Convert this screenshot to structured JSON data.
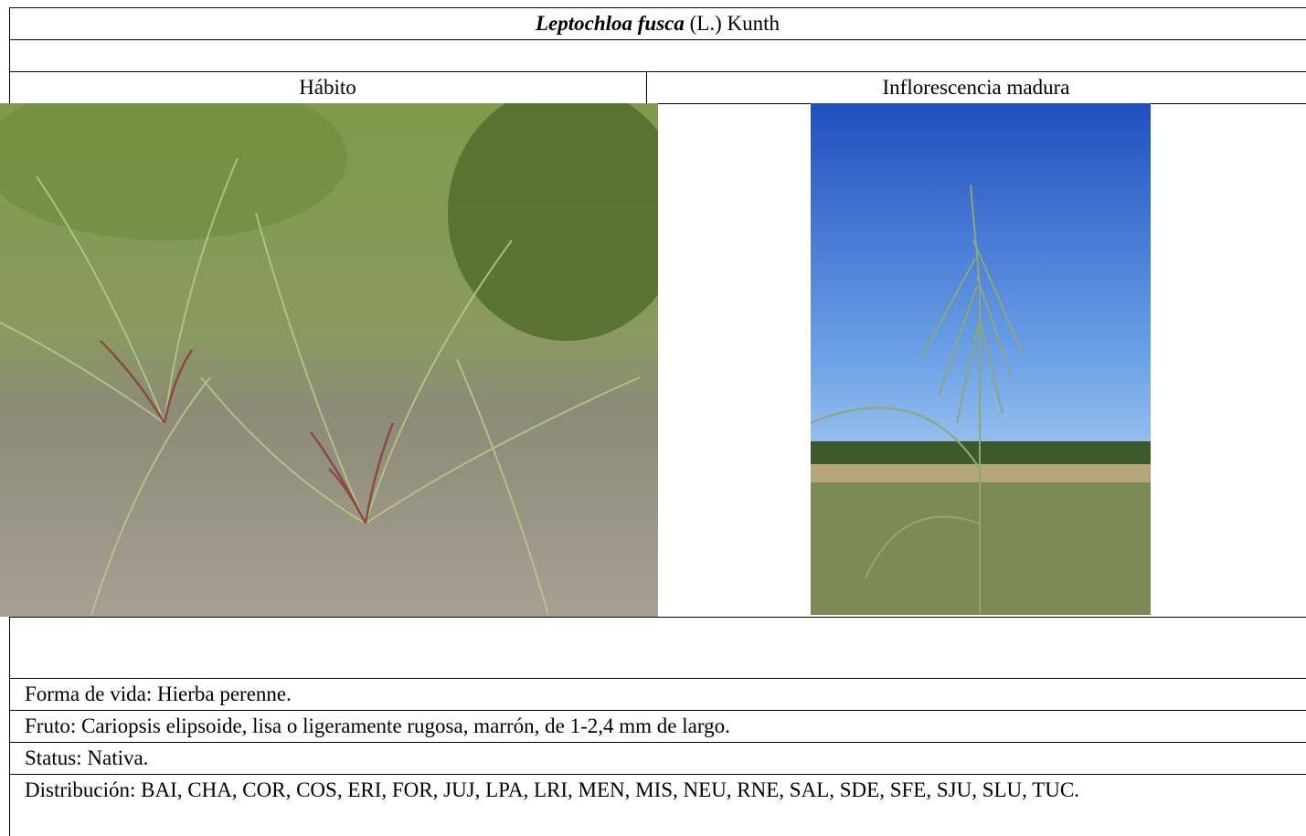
{
  "header": {
    "title_italic": "Leptochloa fusca",
    "title_rest": "(L.) Kunth"
  },
  "table": {
    "columns": [
      "Hábito",
      "Inflorescencia madura"
    ],
    "rows": [
      "Forma de vida: Hierba perenne.",
      "Fruto: Cariopsis elipsoide, lisa o ligeramente rugosa, marrón, de 1-2,4 mm de largo.",
      "Status: Nativa.",
      "Distribución: BAI, CHA, COR, COS, ERI, FOR, JUJ, LPA, LRI, MEN, MIS, NEU, RNE, SAL, SDE, SFE, SJU, SLU, TUC."
    ]
  }
}
